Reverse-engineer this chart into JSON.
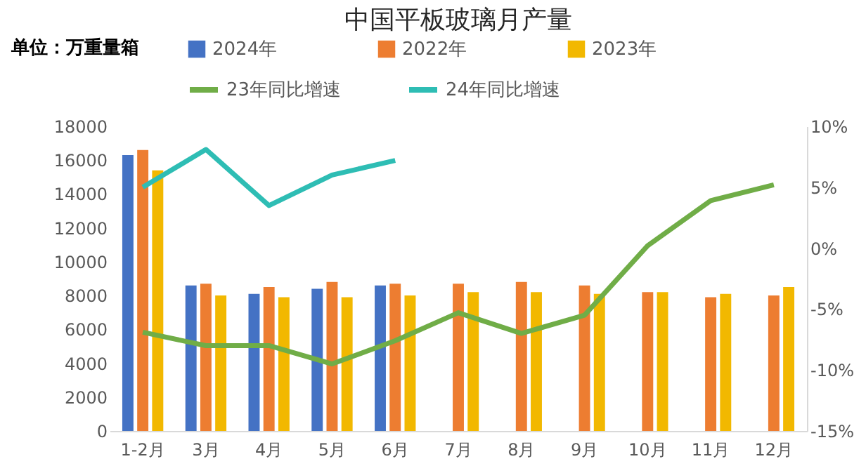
{
  "chart_data": {
    "type": "bar",
    "title": "中国平板玻璃月产量",
    "categories": [
      "1-2月",
      "3月",
      "4月",
      "5月",
      "6月",
      "7月",
      "8月",
      "9月",
      "10月",
      "11月",
      "12月"
    ],
    "series": [
      {
        "name": "2024年",
        "color": "#4472c4",
        "values": [
          16300,
          8600,
          8100,
          8400,
          8600,
          null,
          null,
          null,
          null,
          null,
          null
        ]
      },
      {
        "name": "2022年",
        "color": "#ed7d31",
        "values": [
          16600,
          8700,
          8500,
          8800,
          8700,
          8700,
          8800,
          8600,
          8200,
          7900,
          8000
        ]
      },
      {
        "name": "2023年",
        "color": "#f2b800",
        "values": [
          15400,
          8000,
          7900,
          7900,
          8000,
          8200,
          8200,
          8100,
          8200,
          8100,
          8500
        ]
      },
      {
        "name": "23年同比增速",
        "type": "line",
        "axis": "y2",
        "color": "#70ad47",
        "values": [
          -6.9,
          -8.0,
          -8.0,
          -9.5,
          -7.6,
          -5.3,
          -7.0,
          -5.5,
          0.2,
          3.9,
          5.2
        ]
      },
      {
        "name": "24年同比增速",
        "type": "line",
        "axis": "y2",
        "color": "#2ebdb4",
        "values": [
          5.0,
          8.1,
          3.5,
          6.0,
          7.2,
          null,
          null,
          null,
          null,
          null,
          null
        ]
      }
    ],
    "ylim": [
      0,
      18000
    ],
    "yticks": [
      0,
      2000,
      4000,
      6000,
      8000,
      10000,
      12000,
      14000,
      16000,
      18000
    ],
    "y2lim": [
      -15,
      10
    ],
    "y2ticks": [
      {
        "value": -15,
        "label": "-15%"
      },
      {
        "value": -10,
        "label": "-10%"
      },
      {
        "value": -5,
        "label": "-5%"
      },
      {
        "value": 0,
        "label": "0%"
      },
      {
        "value": 5,
        "label": "5%"
      },
      {
        "value": 10,
        "label": "10%"
      }
    ],
    "annotations": [
      "单位：万重量箱"
    ],
    "legend": "top",
    "grid": false,
    "line_style": "solid",
    "marker": "none"
  }
}
